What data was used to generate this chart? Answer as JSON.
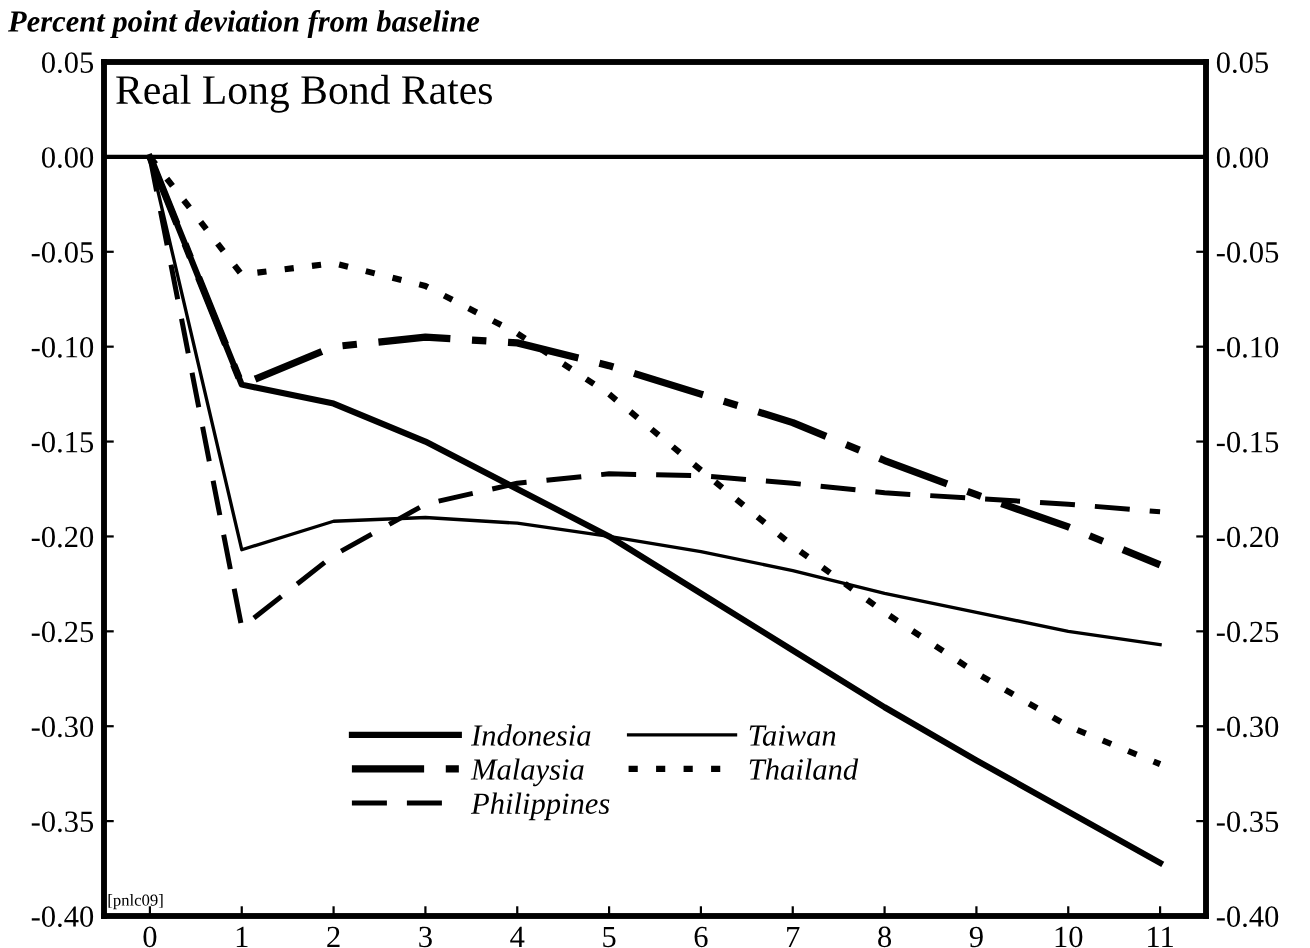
{
  "chart_data": {
    "type": "line",
    "title": "Real Long Bond Rates",
    "ylabel": "Percent point deviation from baseline",
    "x": [
      0,
      1,
      2,
      3,
      4,
      5,
      6,
      7,
      8,
      9,
      10,
      11
    ],
    "series": [
      {
        "name": "Indonesia",
        "color": "#000000",
        "line_style": "solid",
        "values": [
          0,
          -0.12,
          -0.13,
          -0.15,
          -0.175,
          -0.2,
          -0.23,
          -0.26,
          -0.29,
          -0.318,
          -0.345,
          -0.372
        ]
      },
      {
        "name": "Malaysia",
        "color": "#000000",
        "line_style": "dashdot",
        "values": [
          0,
          -0.12,
          -0.1,
          -0.095,
          -0.098,
          -0.11,
          -0.125,
          -0.14,
          -0.16,
          -0.178,
          -0.195,
          -0.215
        ]
      },
      {
        "name": "Philippines",
        "color": "#000000",
        "line_style": "dashed",
        "values": [
          0,
          -0.248,
          -0.21,
          -0.183,
          -0.172,
          -0.167,
          -0.168,
          -0.172,
          -0.177,
          -0.18,
          -0.183,
          -0.187
        ]
      },
      {
        "name": "Taiwan",
        "color": "#000000",
        "line_style": "solid",
        "values": [
          0,
          -0.207,
          -0.192,
          -0.19,
          -0.193,
          -0.2,
          -0.208,
          -0.218,
          -0.23,
          -0.24,
          -0.25,
          -0.257
        ]
      },
      {
        "name": "Thailand",
        "color": "#000000",
        "line_style": "dotted",
        "values": [
          0,
          -0.062,
          -0.056,
          -0.068,
          -0.093,
          -0.125,
          -0.165,
          -0.205,
          -0.24,
          -0.272,
          -0.3,
          -0.32
        ]
      }
    ],
    "xlim": [
      -0.5,
      11.5
    ],
    "xticks": [
      0,
      1,
      2,
      3,
      4,
      5,
      6,
      7,
      8,
      9,
      10,
      11
    ],
    "ylim": [
      -0.4,
      0.05
    ],
    "yticks": [
      {
        "value": 0.05,
        "label": "0.05"
      },
      {
        "value": 0,
        "label": "0.00"
      },
      {
        "value": -0.05,
        "label": "-0.05"
      },
      {
        "value": -0.1,
        "label": "-0.10"
      },
      {
        "value": -0.15,
        "label": "-0.15"
      },
      {
        "value": -0.2,
        "label": "-0.20"
      },
      {
        "value": -0.25,
        "label": "-0.25"
      },
      {
        "value": -0.3,
        "label": "-0.30"
      },
      {
        "value": -0.35,
        "label": "-0.35"
      },
      {
        "value": -0.4,
        "label": "-0.40"
      }
    ],
    "y2lim": [
      -0.4,
      0.05
    ],
    "y2ticks": [
      {
        "value": 0.05,
        "label": "0.05"
      },
      {
        "value": 0,
        "label": "0.00"
      },
      {
        "value": -0.05,
        "label": "-0.05"
      },
      {
        "value": -0.1,
        "label": "-0.10"
      },
      {
        "value": -0.15,
        "label": "-0.15"
      },
      {
        "value": -0.2,
        "label": "-0.20"
      },
      {
        "value": -0.25,
        "label": "-0.25"
      },
      {
        "value": -0.3,
        "label": "-0.30"
      },
      {
        "value": -0.35,
        "label": "-0.35"
      },
      {
        "value": -0.4,
        "label": "-0.40"
      }
    ],
    "ref_lines": [
      {
        "axis": "y",
        "value": 0,
        "color": "#000000",
        "line_style": "solid"
      }
    ],
    "annotations": [
      "[pnlc09]"
    ],
    "legend": "bottom left",
    "grid": false,
    "marker": "none"
  }
}
